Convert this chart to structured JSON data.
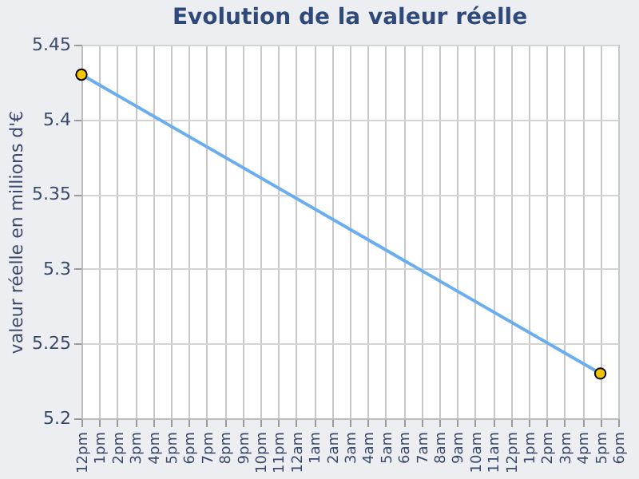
{
  "chart_data": {
    "type": "line",
    "title": "Evolution de la valeur réelle",
    "ylabel": "valeur réelle en millions d'€",
    "categories": [
      "12pm",
      "1pm",
      "2pm",
      "3pm",
      "4pm",
      "5pm",
      "6pm",
      "7pm",
      "8pm",
      "9pm",
      "10pm",
      "11pm",
      "12am",
      "1am",
      "2am",
      "3am",
      "4am",
      "5am",
      "6am",
      "7am",
      "8am",
      "9am",
      "10am",
      "11am",
      "12pm",
      "1pm",
      "2pm",
      "3pm",
      "4pm",
      "5pm",
      "6pm"
    ],
    "series": [
      {
        "color": "#6aaef0",
        "values": [
          5.43,
          null,
          null,
          null,
          null,
          null,
          null,
          null,
          null,
          null,
          null,
          null,
          null,
          null,
          null,
          null,
          null,
          null,
          null,
          null,
          null,
          null,
          null,
          null,
          null,
          null,
          null,
          null,
          null,
          5.23,
          null
        ]
      }
    ],
    "ylim": [
      5.2,
      5.45
    ],
    "yticks": [
      5.2,
      5.25,
      5.3,
      5.35,
      5.4,
      5.45
    ],
    "grid": true,
    "marker": "circle",
    "line_style": "solid"
  }
}
